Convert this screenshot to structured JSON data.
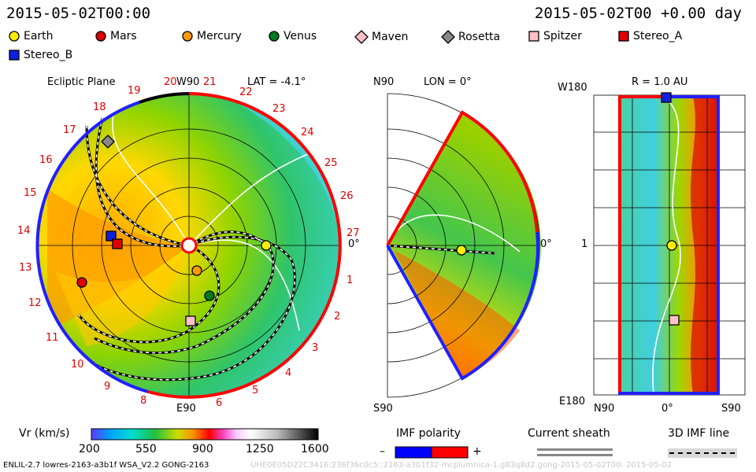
{
  "header": {
    "datetime_left": "2015-05-02T00:00",
    "datetime_right": "2015-05-02T00 +0.00 day"
  },
  "legend": [
    {
      "name": "Earth",
      "marker": "circle",
      "color": "#ffee00"
    },
    {
      "name": "Mars",
      "marker": "circle",
      "color": "#e00000"
    },
    {
      "name": "Mercury",
      "marker": "circle",
      "color": "#ff9900"
    },
    {
      "name": "Venus",
      "marker": "circle",
      "color": "#007a1e"
    },
    {
      "name": "Maven",
      "marker": "diamond",
      "color": "#ffc0c8"
    },
    {
      "name": "Rosetta",
      "marker": "diamond",
      "color": "#888888"
    },
    {
      "name": "Spitzer",
      "marker": "square",
      "color": "#ffc0c8"
    },
    {
      "name": "Stereo_A",
      "marker": "square",
      "color": "#e00000"
    },
    {
      "name": "Stereo_B",
      "marker": "square",
      "color": "#1020e0"
    }
  ],
  "ecliptic": {
    "title": "Ecliptic Plane",
    "top_label": "W90",
    "bottom_label": "E90",
    "right_label": "0°",
    "lat_label": "LAT = -4.1°",
    "rotation_numbers": [
      "1",
      "2",
      "3",
      "4",
      "5",
      "6",
      "8",
      "9",
      "10",
      "11",
      "12",
      "13",
      "14",
      "15",
      "16",
      "17",
      "18",
      "19",
      "20",
      "21",
      "22",
      "23",
      "24",
      "25",
      "26",
      "27"
    ]
  },
  "meridional": {
    "lon_label": "LON = 0°",
    "top_label": "N90",
    "bottom_label": "S90",
    "right_label": "0°"
  },
  "latlon": {
    "r_label": "R = 1.0 AU",
    "top_left": "W180",
    "bottom_left": "E180",
    "mid_left": "1",
    "x_left": "N90",
    "x_mid": "0°",
    "x_right": "S90"
  },
  "colorbar": {
    "label": "Vr (km/s)",
    "ticks": [
      "200",
      "550",
      "900",
      "1250",
      "1600"
    ]
  },
  "imf": {
    "title": "IMF polarity",
    "minus": "–",
    "plus": "+",
    "minus_color": "#0000ff",
    "plus_color": "#ff0000"
  },
  "current_sheath": {
    "title": "Current sheath"
  },
  "imf_line": {
    "title": "3D IMF line"
  },
  "footer": {
    "model_info": "ENLIL-2.7 lowres-2163-a3b1f WSA_V2.2 GONG-2163",
    "watermark": "UHE0E05D22C3416:236f36c0c5::2163-a3b1f32-mcplumnica-1.g83q8d2.gong-2015-05-02T00:  2015-05-02"
  }
}
